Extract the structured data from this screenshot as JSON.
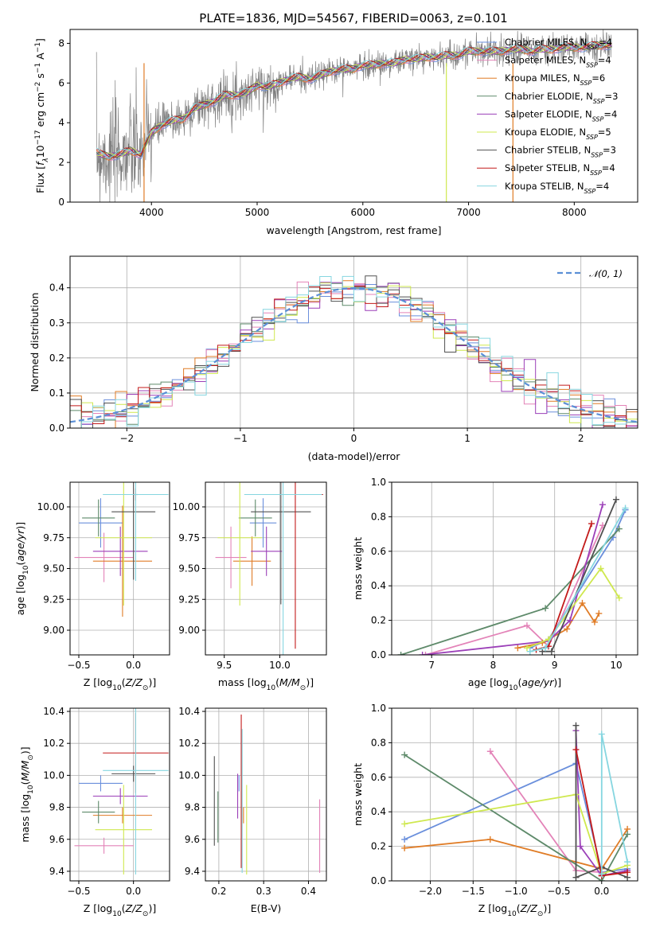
{
  "figure": {
    "title": "PLATE=1836, MJD=54567, FIBERID=0063, z=0.101"
  },
  "palette": {
    "chabrier_miles": "#6a8fdc",
    "salpeter_miles": "#e383b8",
    "kroupa_miles": "#e07c26",
    "chabrier_elodie": "#5e8a6a",
    "salpeter_elodie": "#9b3fb8",
    "kroupa_elodie": "#cfe84f",
    "chabrier_stelib": "#505050",
    "salpeter_stelib": "#c31a1a",
    "kroupa_stelib": "#86d6e0",
    "data": "#808080",
    "grid": "#b0b0b0"
  },
  "chart_data": [
    {
      "id": "spectrum",
      "type": "line",
      "xlabel": "wavelength [Angstrom, rest frame]",
      "ylabel_parts": [
        "Flux [",
        "f",
        "λ",
        "10",
        "−17",
        " erg cm",
        "−2",
        " s",
        "−1",
        " A",
        "−1",
        "]"
      ],
      "xlim": [
        3230,
        8600
      ],
      "ylim": [
        0,
        8.7
      ],
      "xticks": [
        4000,
        5000,
        6000,
        7000,
        8000
      ],
      "yticks": [
        0,
        2,
        4,
        6,
        8
      ],
      "grid": false,
      "continuum_x": [
        3480,
        3520,
        3600,
        3700,
        3800,
        3900,
        4000,
        4100,
        4200,
        4300,
        4400,
        4500,
        4600,
        4700,
        4800,
        4900,
        5000,
        5100,
        5200,
        5300,
        5400,
        5500,
        5600,
        5700,
        5800,
        5900,
        6000,
        6100,
        6200,
        6300,
        6400,
        6500,
        6600,
        6700,
        6800,
        6900,
        7000,
        7100,
        7200,
        7300,
        7400,
        7500,
        7600,
        7700,
        7800,
        7900,
        8000,
        8100,
        8200,
        8300
      ],
      "continuum_y": [
        2.5,
        2.4,
        2.3,
        2.4,
        2.6,
        2.4,
        3.5,
        3.9,
        4.1,
        4.2,
        4.7,
        4.9,
        5.1,
        5.4,
        5.4,
        5.5,
        5.9,
        5.8,
        6.0,
        6.2,
        6.3,
        6.2,
        6.4,
        6.6,
        6.7,
        6.7,
        6.9,
        6.9,
        7.0,
        7.0,
        7.2,
        7.2,
        7.3,
        7.3,
        7.4,
        7.4,
        7.6,
        7.6,
        7.6,
        7.6,
        7.7,
        7.7,
        7.6,
        7.7,
        7.7,
        7.8,
        7.8,
        7.8,
        7.9,
        7.9
      ],
      "legend": {
        "placement": "upper right",
        "entries": [
          {
            "key": "chabrier_miles",
            "label": "Chabrier MILES, N",
            "sub": "SSP",
            "tail": "=4"
          },
          {
            "key": "salpeter_miles",
            "label": "Salpeter MILES, N",
            "sub": "SSP",
            "tail": "=4"
          },
          {
            "key": "kroupa_miles",
            "label": "Kroupa MILES, N",
            "sub": "SSP",
            "tail": "=6"
          },
          {
            "key": "chabrier_elodie",
            "label": "Chabrier ELODIE, N",
            "sub": "SSP",
            "tail": "=3"
          },
          {
            "key": "salpeter_elodie",
            "label": "Salpeter ELODIE, N",
            "sub": "SSP",
            "tail": "=4"
          },
          {
            "key": "kroupa_elodie",
            "label": "Kroupa ELODIE, N",
            "sub": "SSP",
            "tail": "=5"
          },
          {
            "key": "chabrier_stelib",
            "label": "Chabrier STELIB, N",
            "sub": "SSP",
            "tail": "=3"
          },
          {
            "key": "salpeter_stelib",
            "label": "Salpeter STELIB, N",
            "sub": "SSP",
            "tail": "=4"
          },
          {
            "key": "kroupa_stelib",
            "label": "Kroupa STELIB, N",
            "sub": "SSP",
            "tail": "=4"
          }
        ]
      }
    },
    {
      "id": "residuals",
      "type": "histogram",
      "xlabel": "(data-model)/error",
      "ylabel": "Normed distribution",
      "xlim": [
        -2.5,
        2.5
      ],
      "ylim": [
        0,
        0.49
      ],
      "xticks": [
        -2,
        -1,
        0,
        1,
        2
      ],
      "yticks": [
        0.0,
        0.1,
        0.2,
        0.3,
        0.4
      ],
      "grid": true,
      "legend_label": "𝒩(0, 1)",
      "legend_placement": "upper right",
      "bin_width": 0.1
    },
    {
      "id": "age_vs_z",
      "type": "errorbar",
      "xlabel": "Z [log10(Z/Z⊙)]",
      "ylabel": "age  [log10(age/yr)]",
      "xlim": [
        -0.58,
        0.33
      ],
      "ylim": [
        8.8,
        10.2
      ],
      "xticks": [
        -0.5,
        0.0
      ],
      "yticks": [
        9.0,
        9.25,
        9.5,
        9.75,
        10.0
      ],
      "grid": true,
      "points": [
        {
          "key": "chabrier_miles",
          "x": -0.3,
          "xerr": 0.2,
          "y": 9.87,
          "yerr": 0.2
        },
        {
          "key": "salpeter_miles",
          "x": -0.27,
          "xerr": 0.27,
          "y": 9.59,
          "yerr": 0.2
        },
        {
          "key": "kroupa_miles",
          "x": -0.1,
          "xerr": 0.27,
          "y": 9.56,
          "yerr": 0.45
        },
        {
          "key": "chabrier_elodie",
          "x": -0.32,
          "xerr": 0.15,
          "y": 9.91,
          "yerr": 0.15
        },
        {
          "key": "salpeter_elodie",
          "x": -0.12,
          "xerr": 0.25,
          "y": 9.64,
          "yerr": 0.2
        },
        {
          "key": "kroupa_elodie",
          "x": -0.09,
          "xerr": 0.26,
          "y": 9.75,
          "yerr": 0.55
        },
        {
          "key": "chabrier_stelib",
          "x": 0.0,
          "xerr": 0.2,
          "y": 9.96,
          "yerr": 0.55
        },
        {
          "key": "salpeter_stelib",
          "x": 0.02,
          "xerr": 0.02,
          "y": 10.1,
          "yerr": 0.05
        },
        {
          "key": "kroupa_stelib",
          "x": 0.02,
          "xerr": 0.3,
          "y": 10.1,
          "yerr": 0.7
        }
      ]
    },
    {
      "id": "age_vs_mass",
      "type": "errorbar",
      "xlabel": "mass [log10(M/M⊙)]",
      "xlim": [
        9.33,
        10.42
      ],
      "ylim": [
        8.8,
        10.2
      ],
      "xticks": [
        9.5,
        10.0
      ],
      "yticks": [
        9.0,
        9.25,
        9.5,
        9.75,
        10.0
      ],
      "grid": true,
      "points": [
        {
          "key": "chabrier_miles",
          "x": 9.85,
          "xerr": 0.12,
          "y": 9.87,
          "yerr": 0.2
        },
        {
          "key": "salpeter_miles",
          "x": 9.56,
          "xerr": 0.14,
          "y": 9.59,
          "yerr": 0.25
        },
        {
          "key": "kroupa_miles",
          "x": 9.75,
          "xerr": 0.17,
          "y": 9.56,
          "yerr": 0.2
        },
        {
          "key": "chabrier_elodie",
          "x": 9.78,
          "xerr": 0.15,
          "y": 9.91,
          "yerr": 0.15
        },
        {
          "key": "salpeter_elodie",
          "x": 9.88,
          "xerr": 0.14,
          "y": 9.64,
          "yerr": 0.2
        },
        {
          "key": "kroupa_elodie",
          "x": 9.64,
          "xerr": 0.2,
          "y": 9.75,
          "yerr": 0.55
        },
        {
          "key": "chabrier_stelib",
          "x": 10.01,
          "xerr": 0.27,
          "y": 9.96,
          "yerr": 0.75
        },
        {
          "key": "salpeter_stelib",
          "x": 10.14,
          "xerr": 0.25,
          "y": 10.1,
          "yerr": 1.25
        },
        {
          "key": "kroupa_stelib",
          "x": 10.03,
          "xerr": 0.35,
          "y": 10.1,
          "yerr": 1.3
        }
      ]
    },
    {
      "id": "weight_vs_age",
      "type": "line",
      "xlabel": "age  [log10(age/yr)]",
      "ylabel": "mass weight",
      "xlim": [
        6.35,
        10.35
      ],
      "ylim": [
        0,
        1.0
      ],
      "xticks": [
        7,
        8,
        9,
        10
      ],
      "yticks": [
        0.0,
        0.2,
        0.4,
        0.6,
        0.8,
        1.0
      ],
      "grid": true,
      "series": [
        {
          "key": "chabrier_miles",
          "x": [
            8.6,
            8.9,
            9.95,
            10.15
          ],
          "y": [
            0.04,
            0.09,
            0.68,
            0.84
          ]
        },
        {
          "key": "salpeter_miles",
          "x": [
            6.9,
            8.55,
            8.9,
            9.78
          ],
          "y": [
            0.0,
            0.17,
            0.05,
            0.75
          ]
        },
        {
          "key": "kroupa_miles",
          "x": [
            8.4,
            8.8,
            9.2,
            9.45,
            9.65,
            9.72
          ],
          "y": [
            0.04,
            0.07,
            0.15,
            0.3,
            0.19,
            0.24
          ]
        },
        {
          "key": "chabrier_elodie",
          "x": [
            6.5,
            8.85,
            10.05
          ],
          "y": [
            0.0,
            0.27,
            0.73
          ]
        },
        {
          "key": "salpeter_elodie",
          "x": [
            6.85,
            8.9,
            9.25,
            9.78
          ],
          "y": [
            0.0,
            0.08,
            0.2,
            0.87
          ]
        },
        {
          "key": "kroupa_elodie",
          "x": [
            8.55,
            8.9,
            9.75,
            10.05
          ],
          "y": [
            0.04,
            0.09,
            0.5,
            0.33
          ]
        },
        {
          "key": "chabrier_stelib",
          "x": [
            8.8,
            8.95,
            10.0
          ],
          "y": [
            0.02,
            0.02,
            0.9
          ]
        },
        {
          "key": "salpeter_stelib",
          "x": [
            8.7,
            8.9,
            9.6
          ],
          "y": [
            0.03,
            0.05,
            0.76
          ]
        },
        {
          "key": "kroupa_stelib",
          "x": [
            8.6,
            8.85,
            10.15
          ],
          "y": [
            0.02,
            0.04,
            0.85
          ]
        }
      ]
    },
    {
      "id": "mass_vs_z",
      "type": "errorbar",
      "xlabel": "Z [log10(Z/Z⊙)]",
      "ylabel": "mass [log10(M/M⊙)]",
      "xlim": [
        -0.58,
        0.33
      ],
      "ylim": [
        9.34,
        10.42
      ],
      "xticks": [
        -0.5,
        0.0
      ],
      "yticks": [
        9.4,
        9.6,
        9.8,
        10.0,
        10.2,
        10.4
      ],
      "grid": true,
      "points": [
        {
          "key": "chabrier_miles",
          "x": -0.3,
          "xerr": 0.2,
          "y": 9.95,
          "yerr": 0.05
        },
        {
          "key": "salpeter_miles",
          "x": -0.27,
          "xerr": 0.27,
          "y": 9.56,
          "yerr": 0.05
        },
        {
          "key": "kroupa_miles",
          "x": -0.1,
          "xerr": 0.27,
          "y": 9.75,
          "yerr": 0.05
        },
        {
          "key": "chabrier_elodie",
          "x": -0.32,
          "xerr": 0.15,
          "y": 9.77,
          "yerr": 0.07
        },
        {
          "key": "salpeter_elodie",
          "x": -0.12,
          "xerr": 0.25,
          "y": 9.87,
          "yerr": 0.05
        },
        {
          "key": "kroupa_elodie",
          "x": -0.09,
          "xerr": 0.26,
          "y": 9.66,
          "yerr": 0.28
        },
        {
          "key": "chabrier_stelib",
          "x": 0.0,
          "xerr": 0.2,
          "y": 10.01,
          "yerr": 0.05
        },
        {
          "key": "salpeter_stelib",
          "x": 0.02,
          "xerr": 0.3,
          "y": 10.14,
          "yerr": 0.25
        },
        {
          "key": "kroupa_stelib",
          "x": 0.02,
          "xerr": 0.3,
          "y": 10.03,
          "yerr": 0.65
        }
      ]
    },
    {
      "id": "mass_vs_ebv",
      "type": "errorbar",
      "xlabel": "E(B-V)",
      "xlim": [
        0.17,
        0.44
      ],
      "ylim": [
        9.34,
        10.42
      ],
      "xticks": [
        0.2,
        0.3,
        0.4
      ],
      "yticks": [
        9.4,
        9.6,
        9.8,
        10.0,
        10.2,
        10.4
      ],
      "grid": true,
      "points": [
        {
          "key": "chabrier_miles",
          "x": 0.245,
          "y": 9.95,
          "yerr": 0.05
        },
        {
          "key": "salpeter_miles",
          "x": 0.425,
          "y": 9.62,
          "yerr": 0.23
        },
        {
          "key": "kroupa_miles",
          "x": 0.255,
          "y": 9.75,
          "yerr": 0.05
        },
        {
          "key": "chabrier_elodie",
          "x": 0.198,
          "y": 9.74,
          "yerr": 0.16
        },
        {
          "key": "salpeter_elodie",
          "x": 0.242,
          "y": 9.87,
          "yerr": 0.14
        },
        {
          "key": "kroupa_elodie",
          "x": 0.262,
          "y": 9.66,
          "yerr": 0.28
        },
        {
          "key": "chabrier_stelib",
          "x": 0.19,
          "y": 9.84,
          "yerr": 0.28
        },
        {
          "key": "salpeter_stelib",
          "x": 0.25,
          "y": 9.9,
          "yerr": 0.48
        },
        {
          "key": "kroupa_stelib",
          "x": 0.252,
          "y": 9.84,
          "yerr": 0.45
        }
      ]
    },
    {
      "id": "weight_vs_z",
      "type": "line",
      "xlabel": "Z [log10(Z/Z⊙)]",
      "ylabel": "mass weight",
      "xlim": [
        -2.45,
        0.42
      ],
      "ylim": [
        0,
        1.0
      ],
      "xticks": [
        -2.0,
        -1.5,
        -1.0,
        -0.5,
        0.0
      ],
      "yticks": [
        0.0,
        0.2,
        0.4,
        0.6,
        0.8,
        1.0
      ],
      "grid": true,
      "series": [
        {
          "key": "chabrier_miles",
          "x": [
            -2.3,
            -0.3,
            0.0,
            0.3
          ],
          "y": [
            0.24,
            0.68,
            0.05,
            0.07
          ]
        },
        {
          "key": "salpeter_miles",
          "x": [
            -1.3,
            -0.3,
            0.0
          ],
          "y": [
            0.75,
            0.06,
            0.05
          ]
        },
        {
          "key": "kroupa_miles",
          "x": [
            -2.3,
            -1.3,
            0.0,
            0.3
          ],
          "y": [
            0.19,
            0.24,
            0.07,
            0.3
          ]
        },
        {
          "key": "chabrier_elodie",
          "x": [
            -2.3,
            0.0,
            0.3
          ],
          "y": [
            0.73,
            0.0,
            0.27
          ]
        },
        {
          "key": "salpeter_elodie",
          "x": [
            -0.3,
            -0.25,
            0.0,
            0.3
          ],
          "y": [
            0.87,
            0.2,
            0.03,
            0.06
          ]
        },
        {
          "key": "kroupa_elodie",
          "x": [
            -2.3,
            -0.3,
            0.0,
            0.3
          ],
          "y": [
            0.33,
            0.5,
            0.04,
            0.09
          ]
        },
        {
          "key": "chabrier_stelib",
          "x": [
            -0.3,
            -0.3,
            0.0,
            0.3
          ],
          "y": [
            0.9,
            0.02,
            0.08,
            0.02
          ]
        },
        {
          "key": "salpeter_stelib",
          "x": [
            -0.3,
            0.0,
            0.3
          ],
          "y": [
            0.76,
            0.03,
            0.05
          ]
        },
        {
          "key": "kroupa_stelib",
          "x": [
            0.0,
            0.0,
            0.3
          ],
          "y": [
            0.04,
            0.85,
            0.11
          ]
        }
      ]
    }
  ]
}
